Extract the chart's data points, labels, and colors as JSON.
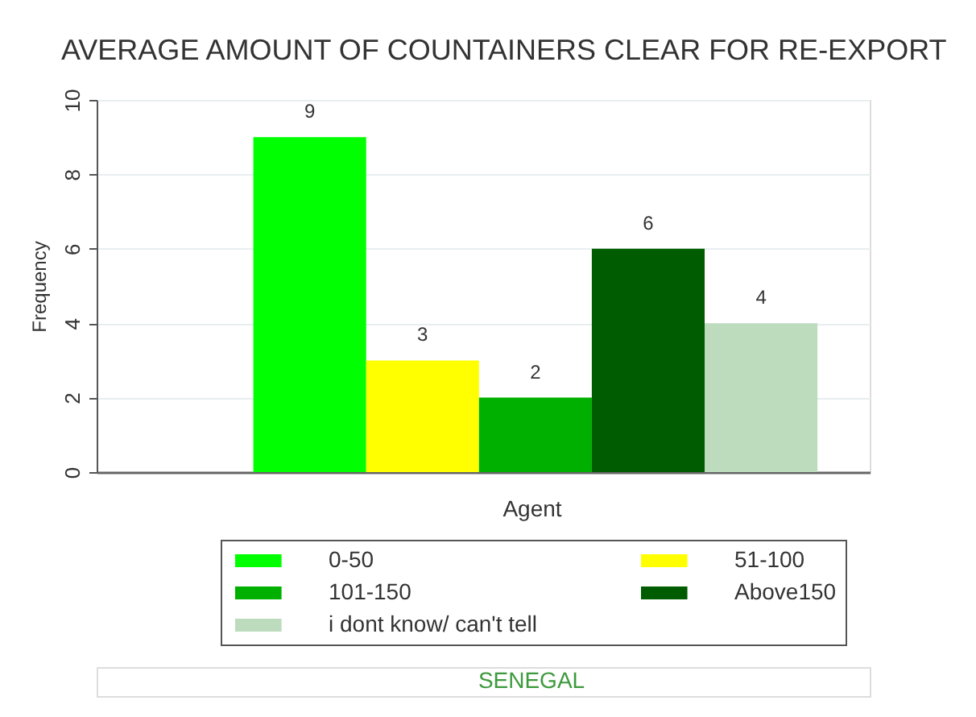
{
  "chart_data": {
    "type": "bar",
    "title": "AVERAGE AMOUNT OF COUNTAINERS CLEAR FOR RE-EXPORT",
    "xlabel": "Agent",
    "ylabel": "Frequency",
    "categories": [
      null
    ],
    "series": [
      {
        "name": "0-50",
        "color": "#00ff00",
        "values": [
          9
        ]
      },
      {
        "name": "51-100",
        "color": "#ffff00",
        "values": [
          3
        ]
      },
      {
        "name": "101-150",
        "color": "#00b000",
        "values": [
          2
        ]
      },
      {
        "name": "Above150",
        "color": "#005c00",
        "values": [
          6
        ]
      },
      {
        "name": "i dont know/ can't tell",
        "color": "#bddbbd",
        "values": [
          4
        ]
      }
    ],
    "ylim": [
      0,
      10
    ],
    "yticks": [
      0,
      2,
      4,
      6,
      8,
      10
    ],
    "grid": "y",
    "legend": "bottom",
    "data_labels": true,
    "annotations": [
      "SENEGAL"
    ]
  }
}
